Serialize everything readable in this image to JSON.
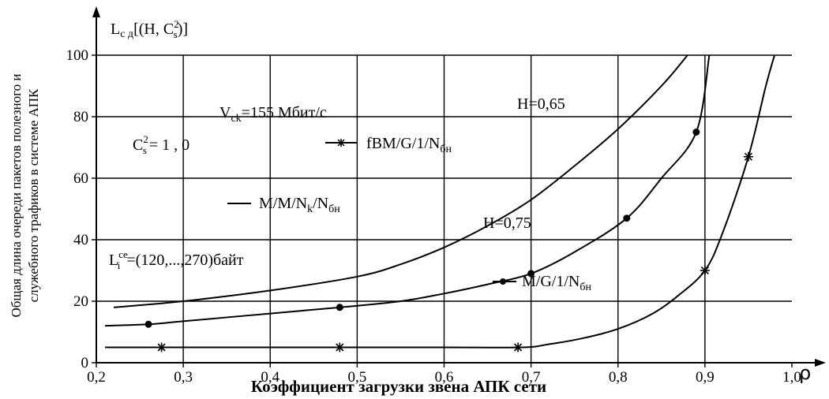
{
  "chart_data": {
    "type": "line",
    "title": "",
    "xlabel": "Коэффициент загрузки звена АПК сети",
    "x_symbol": "ρ",
    "ylabel_lines": [
      "Общая длина очереди пакетов полезного и",
      "служебного трафиков  в системе АПК"
    ],
    "y_title": "L",
    "y_title_sub": "с д",
    "y_title_rest": "[(H, C",
    "y_title_sup2": "2",
    "y_title_subs": "s",
    "y_title_end": ")]",
    "xlim": [
      0.2,
      1.0
    ],
    "ylim": [
      0,
      100
    ],
    "x_ticks": [
      0.2,
      0.3,
      0.4,
      0.5,
      0.6,
      0.7,
      0.8,
      0.9,
      1.0
    ],
    "x_tick_labels": [
      "0,2",
      "0,3",
      "0,4",
      "0,5",
      "0,6",
      "0,7",
      "0,8",
      "0,9",
      "1,0"
    ],
    "y_ticks": [
      0,
      20,
      40,
      60,
      80,
      100
    ],
    "y_tick_labels": [
      "0",
      "20",
      "40",
      "60",
      "80",
      "100"
    ],
    "grid": true,
    "series": [
      {
        "name": "M/M/N_k/N_бн",
        "marker": "none",
        "x": [
          0.22,
          0.3,
          0.4,
          0.5,
          0.55,
          0.6,
          0.65,
          0.7,
          0.75,
          0.8,
          0.85,
          0.88
        ],
        "y": [
          18,
          20,
          23.5,
          28,
          32,
          37.5,
          44.5,
          53,
          64,
          76,
          90,
          100
        ]
      },
      {
        "name": "M/G/1/N_бн",
        "marker": "dot",
        "x": [
          0.21,
          0.26,
          0.3,
          0.4,
          0.48,
          0.55,
          0.6,
          0.65,
          0.7,
          0.75,
          0.81,
          0.85,
          0.89,
          0.905
        ],
        "y": [
          12,
          12.5,
          13.5,
          16,
          18,
          20,
          22.5,
          25.5,
          29,
          36,
          47,
          60,
          75,
          100
        ],
        "marker_x": [
          0.26,
          0.48,
          0.7,
          0.81,
          0.89
        ],
        "marker_y": [
          12.5,
          18,
          29,
          47,
          75
        ]
      },
      {
        "name": "fBM/G/1/N_бн",
        "marker": "star",
        "x": [
          0.21,
          0.27,
          0.48,
          0.6,
          0.69,
          0.72,
          0.76,
          0.8,
          0.84,
          0.87,
          0.9,
          0.92,
          0.95,
          0.97,
          0.98
        ],
        "y": [
          5,
          5,
          5,
          5,
          5,
          6,
          8,
          11,
          16,
          22,
          30,
          42,
          67,
          90,
          100
        ],
        "marker_x": [
          0.275,
          0.48,
          0.685,
          0.9,
          0.95
        ],
        "marker_y": [
          5,
          5,
          5,
          30,
          67
        ]
      }
    ],
    "annotations": {
      "vck_main": "V",
      "vck_sub": "ck",
      "vck_rest": "=155  Мбит/с",
      "cs_main": "C",
      "cs_sup": "2",
      "cs_sub": "s",
      "cs_rest": "= 1 , 0",
      "h065": "H=0,65",
      "h075": "H=0,75",
      "legend_fbm": "fBM/G/1/N",
      "legend_fbm_sub": "бн",
      "legend_mm_main": "M/M/N",
      "legend_mm_k": "k",
      "legend_mm_rest": "/N",
      "legend_mm_sub": "бн",
      "li_main": "L",
      "li_sup": "ce",
      "li_sub": "i",
      "li_rest": "=(120,...,270)байт",
      "legend_mg": "M/G/1/N",
      "legend_mg_sub": "бн"
    }
  }
}
